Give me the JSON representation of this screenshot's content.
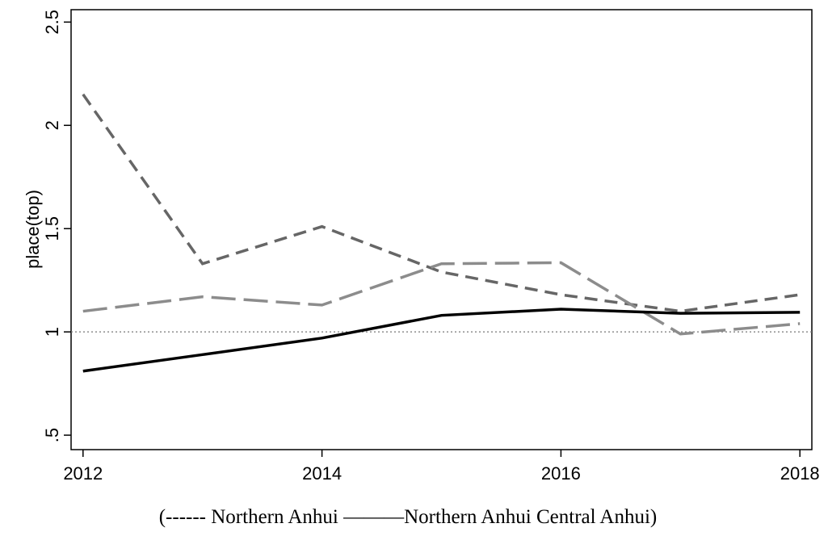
{
  "chart_data": {
    "type": "line",
    "y_label": "place(top)",
    "caption": "(------ Northern Anhui ———Northern Anhui Central Anhui)",
    "x": [
      2012,
      2013,
      2014,
      2015,
      2016,
      2017,
      2018
    ],
    "xlim": [
      2011.9,
      2018.1
    ],
    "xticks": [
      2012,
      2014,
      2016,
      2018
    ],
    "ylim": [
      0.43,
      2.56
    ],
    "yticks": [
      {
        "value": 0.5,
        "label": ".5"
      },
      1,
      1.5,
      2,
      2.5
    ],
    "reference_line": 1,
    "series": [
      {
        "color": "#666666",
        "dash": "16 9",
        "values": [
          2.15,
          1.33,
          1.51,
          1.29,
          1.18,
          1.1,
          1.18
        ]
      },
      {
        "color": "#8c8c8c",
        "dash": "30 10",
        "values": [
          1.1,
          1.17,
          1.13,
          1.33,
          1.335,
          0.99,
          1.04
        ]
      },
      {
        "color": "#000000",
        "dash": "none",
        "values": [
          0.81,
          0.89,
          0.97,
          1.08,
          1.11,
          1.09,
          1.095
        ]
      }
    ]
  }
}
